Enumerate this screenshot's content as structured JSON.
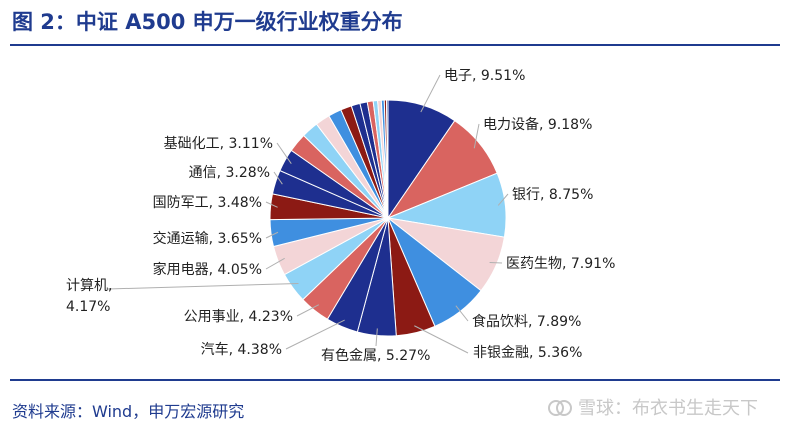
{
  "header": {
    "title": "图 2：中证 A500 申万一级行业权重分布"
  },
  "footer": {
    "source": "资料来源：Wind，申万宏源研究",
    "watermark": "雪球：布衣书生走天下"
  },
  "chart_data": {
    "type": "pie",
    "title": "图 2：中证 A500 申万一级行业权重分布",
    "slices": [
      {
        "label": "电子",
        "value": 9.51,
        "text": "电子, 9.51%",
        "color": "#1e2f8f"
      },
      {
        "label": "电力设备",
        "value": 9.18,
        "text": "电力设备, 9.18%",
        "color": "#d96460"
      },
      {
        "label": "银行",
        "value": 8.75,
        "text": "银行, 8.75%",
        "color": "#8fd3f6"
      },
      {
        "label": "医药生物",
        "value": 7.91,
        "text": "医药生物, 7.91%",
        "color": "#f3d5d7"
      },
      {
        "label": "食品饮料",
        "value": 7.89,
        "text": "食品饮料, 7.89%",
        "color": "#3f8fe0"
      },
      {
        "label": "非银金融",
        "value": 5.36,
        "text": "非银金融, 5.36%",
        "color": "#8c1a14"
      },
      {
        "label": "有色金属",
        "value": 5.27,
        "text": "有色金属, 5.27%",
        "color": "#1e2f8f"
      },
      {
        "label": "汽车",
        "value": 4.38,
        "text": "汽车, 4.38%",
        "color": "#1e2f8f"
      },
      {
        "label": "公用事业",
        "value": 4.23,
        "text": "公用事业, 4.23%",
        "color": "#d96460"
      },
      {
        "label": "计算机",
        "value": 4.17,
        "text": "计算机, 4.17%",
        "color": "#8fd3f6"
      },
      {
        "label": "家用电器",
        "value": 4.05,
        "text": "家用电器, 4.05%",
        "color": "#f3d5d7"
      },
      {
        "label": "交通运输",
        "value": 3.65,
        "text": "交通运输, 3.65%",
        "color": "#3f8fe0"
      },
      {
        "label": "国防军工",
        "value": 3.48,
        "text": "国防军工, 3.48%",
        "color": "#8c1a14"
      },
      {
        "label": "通信",
        "value": 3.28,
        "text": "通信, 3.28%",
        "color": "#1e2f8f"
      },
      {
        "label": "基础化工",
        "value": 3.11,
        "text": "基础化工, 3.11%",
        "color": "#1e2f8f"
      }
    ],
    "others": [
      {
        "value": 2.6,
        "color": "#d96460"
      },
      {
        "value": 2.3,
        "color": "#8fd3f6"
      },
      {
        "value": 2.0,
        "color": "#f3d5d7"
      },
      {
        "value": 1.8,
        "color": "#3f8fe0"
      },
      {
        "value": 1.5,
        "color": "#8c1a14"
      },
      {
        "value": 1.2,
        "color": "#1e2f8f"
      },
      {
        "value": 1.0,
        "color": "#1e2f8f"
      },
      {
        "value": 0.8,
        "color": "#d96460"
      },
      {
        "value": 0.6,
        "color": "#8fd3f6"
      },
      {
        "value": 0.5,
        "color": "#f3d5d7"
      },
      {
        "value": 0.4,
        "color": "#3f8fe0"
      },
      {
        "value": 0.3,
        "color": "#8c1a14"
      },
      {
        "value": 0.2,
        "color": "#1e2f8f"
      }
    ]
  }
}
